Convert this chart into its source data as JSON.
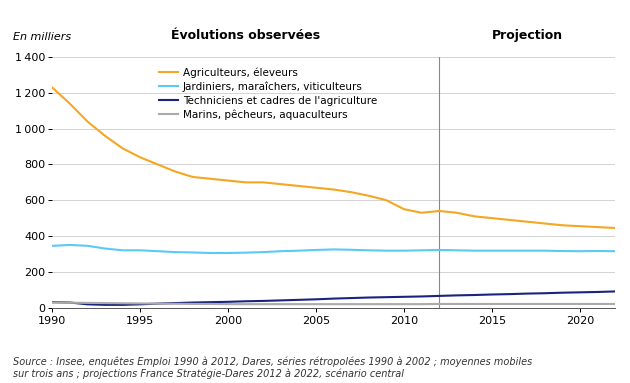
{
  "title_evolutions": "Évolutions observées",
  "title_projection": "Projection",
  "ylabel": "En milliers",
  "xlim": [
    1990,
    2022
  ],
  "ylim": [
    0,
    1400
  ],
  "yticks": [
    0,
    200,
    400,
    600,
    800,
    1000,
    1200,
    1400
  ],
  "xticks": [
    1990,
    1995,
    2000,
    2005,
    2010,
    2015,
    2020
  ],
  "vline_x": 2012,
  "source_text": "Source : Insee, enquêtes Emploi 1990 à 2012, Dares, séries rétropolées 1990 à 2002 ; moyennes mobiles\nsur trois ans ; projections France Stratégie-Dares 2012 à 2022, scénario central",
  "series": {
    "agriculteurs": {
      "label": "Agriculteurs, éleveurs",
      "color": "#F5A623",
      "years": [
        1990,
        1991,
        1992,
        1993,
        1994,
        1995,
        1996,
        1997,
        1998,
        1999,
        2000,
        2001,
        2002,
        2003,
        2004,
        2005,
        2006,
        2007,
        2008,
        2009,
        2010,
        2011,
        2012,
        2013,
        2014,
        2015,
        2016,
        2017,
        2018,
        2019,
        2020,
        2021,
        2022
      ],
      "values": [
        1230,
        1140,
        1040,
        960,
        890,
        840,
        800,
        760,
        730,
        720,
        710,
        700,
        700,
        690,
        680,
        670,
        660,
        645,
        625,
        600,
        550,
        530,
        540,
        530,
        510,
        500,
        490,
        480,
        470,
        460,
        455,
        450,
        445
      ]
    },
    "jardiniers": {
      "label": "Jardiniers, maraîchers, viticulteurs",
      "color": "#5BC8F5",
      "years": [
        1990,
        1991,
        1992,
        1993,
        1994,
        1995,
        1996,
        1997,
        1998,
        1999,
        2000,
        2001,
        2002,
        2003,
        2004,
        2005,
        2006,
        2007,
        2008,
        2009,
        2010,
        2011,
        2012,
        2013,
        2014,
        2015,
        2016,
        2017,
        2018,
        2019,
        2020,
        2021,
        2022
      ],
      "values": [
        345,
        350,
        345,
        330,
        320,
        320,
        315,
        310,
        308,
        305,
        305,
        307,
        310,
        315,
        318,
        322,
        325,
        323,
        320,
        318,
        318,
        320,
        322,
        320,
        318,
        318,
        318,
        318,
        318,
        316,
        315,
        316,
        315
      ]
    },
    "techniciens": {
      "label": "Techniciens et cadres de l'agriculture",
      "color": "#1A237E",
      "years": [
        1990,
        1991,
        1992,
        1993,
        1994,
        1995,
        1996,
        1997,
        1998,
        1999,
        2000,
        2001,
        2002,
        2003,
        2004,
        2005,
        2006,
        2007,
        2008,
        2009,
        2010,
        2011,
        2012,
        2013,
        2014,
        2015,
        2016,
        2017,
        2018,
        2019,
        2020,
        2021,
        2022
      ],
      "values": [
        30,
        28,
        18,
        15,
        15,
        18,
        22,
        25,
        28,
        30,
        32,
        35,
        37,
        40,
        43,
        46,
        50,
        53,
        56,
        58,
        60,
        62,
        65,
        68,
        70,
        73,
        75,
        78,
        80,
        83,
        85,
        87,
        90
      ]
    },
    "marins": {
      "label": "Marins, pêcheurs, aquaculteurs",
      "color": "#AAAAAA",
      "years": [
        1990,
        1991,
        1992,
        1993,
        1994,
        1995,
        1996,
        1997,
        1998,
        1999,
        2000,
        2001,
        2002,
        2003,
        2004,
        2005,
        2006,
        2007,
        2008,
        2009,
        2010,
        2011,
        2012,
        2013,
        2014,
        2015,
        2016,
        2017,
        2018,
        2019,
        2020,
        2021,
        2022
      ],
      "values": [
        28,
        27,
        26,
        25,
        24,
        23,
        22,
        21,
        20,
        20,
        19,
        19,
        19,
        19,
        19,
        19,
        19,
        19,
        19,
        19,
        19,
        19,
        20,
        20,
        20,
        20,
        20,
        20,
        20,
        20,
        20,
        20,
        20
      ]
    }
  },
  "background_color": "#FFFFFF",
  "grid_color": "#CCCCCC",
  "font_color": "#000000",
  "linewidth": 1.5
}
